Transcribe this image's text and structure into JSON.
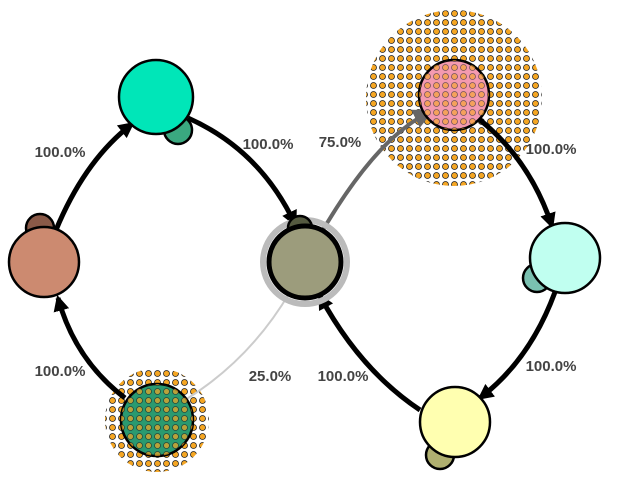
{
  "edges": [
    {
      "label": "100.0%"
    },
    {
      "label": "100.0%"
    },
    {
      "label": "75.0%"
    },
    {
      "label": "100.0%"
    },
    {
      "label": "100.0%"
    },
    {
      "label": "100.0%"
    },
    {
      "label": "100.0%"
    },
    {
      "label": "25.0%"
    }
  ]
}
